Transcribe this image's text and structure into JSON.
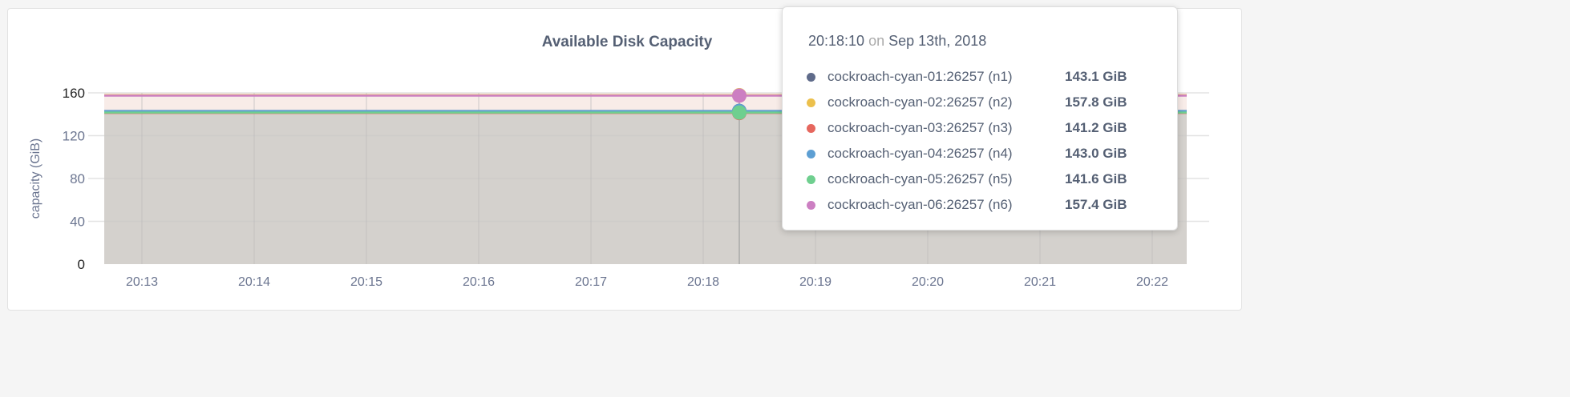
{
  "chart_data": {
    "type": "area",
    "title": "Available Disk Capacity",
    "ylabel": "capacity (GiB)",
    "ylim": [
      0,
      160
    ],
    "yticks": [
      "0",
      "40",
      "80",
      "120",
      "160"
    ],
    "xticks": [
      "20:13",
      "20:14",
      "20:15",
      "20:16",
      "20:17",
      "20:18",
      "20:19",
      "20:20",
      "20:21",
      "20:22"
    ],
    "grid": true,
    "series": [
      {
        "name": "cockroach-cyan-01:26257 (n1)",
        "color": "#5f6b8a",
        "value": 143.1
      },
      {
        "name": "cockroach-cyan-02:26257 (n2)",
        "color": "#ecc04c",
        "value": 157.8
      },
      {
        "name": "cockroach-cyan-03:26257 (n3)",
        "color": "#e6675e",
        "value": 141.2
      },
      {
        "name": "cockroach-cyan-04:26257 (n4)",
        "color": "#5d9fd3",
        "value": 143.0
      },
      {
        "name": "cockroach-cyan-05:26257 (n5)",
        "color": "#6fcf8f",
        "value": 141.6
      },
      {
        "name": "cockroach-cyan-06:26257 (n6)",
        "color": "#cc7fc2",
        "value": 157.4
      }
    ]
  },
  "tooltip": {
    "time": "20:18:10",
    "on": "on",
    "date": "Sep 13th, 2018",
    "values": [
      "143.1 GiB",
      "157.8 GiB",
      "141.2 GiB",
      "143.0 GiB",
      "141.6 GiB",
      "157.4 GiB"
    ]
  }
}
